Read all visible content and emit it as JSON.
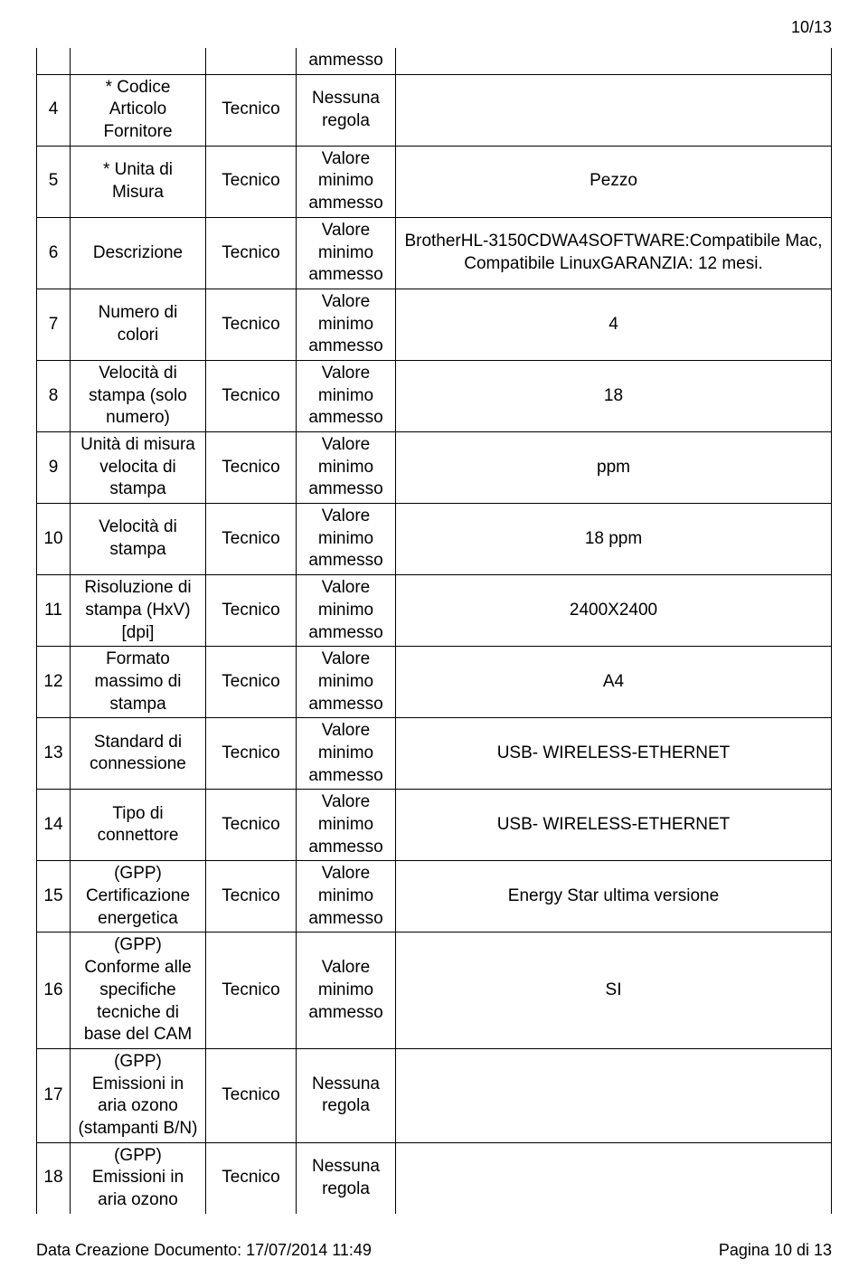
{
  "page_indicator": "10/13",
  "top_ammesso": "ammesso",
  "rows": [
    {
      "n": "4",
      "name": "* Codice Articolo Fornitore",
      "tecnico": "Tecnico",
      "regola": "Nessuna regola",
      "value": ""
    },
    {
      "n": "5",
      "name": "* Unita di Misura",
      "tecnico": "Tecnico",
      "regola": "Valore minimo ammesso",
      "value": "Pezzo"
    },
    {
      "n": "6",
      "name": "Descrizione",
      "tecnico": "Tecnico",
      "regola": "Valore minimo ammesso",
      "value": "BrotherHL-3150CDWA4SOFTWARE:Compatibile Mac, Compatibile LinuxGARANZIA: 12 mesi."
    },
    {
      "n": "7",
      "name": "Numero di colori",
      "tecnico": "Tecnico",
      "regola": "Valore minimo ammesso",
      "value": "4"
    },
    {
      "n": "8",
      "name": "Velocità di stampa (solo numero)",
      "tecnico": "Tecnico",
      "regola": "Valore minimo ammesso",
      "value": "18"
    },
    {
      "n": "9",
      "name": "Unità di misura velocita di stampa",
      "tecnico": "Tecnico",
      "regola": "Valore minimo ammesso",
      "value": "ppm"
    },
    {
      "n": "10",
      "name": "Velocità di stampa",
      "tecnico": "Tecnico",
      "regola": "Valore minimo ammesso",
      "value": "18 ppm"
    },
    {
      "n": "11",
      "name": "Risoluzione di stampa (HxV) [dpi]",
      "tecnico": "Tecnico",
      "regola": "Valore minimo ammesso",
      "value": "2400X2400"
    },
    {
      "n": "12",
      "name": "Formato massimo di stampa",
      "tecnico": "Tecnico",
      "regola": "Valore minimo ammesso",
      "value": "A4"
    },
    {
      "n": "13",
      "name": "Standard di connessione",
      "tecnico": "Tecnico",
      "regola": "Valore minimo ammesso",
      "value": "USB- WIRELESS-ETHERNET"
    },
    {
      "n": "14",
      "name": "Tipo di connettore",
      "tecnico": "Tecnico",
      "regola": "Valore minimo ammesso",
      "value": "USB- WIRELESS-ETHERNET"
    },
    {
      "n": "15",
      "name": "(GPP) Certificazione energetica",
      "tecnico": "Tecnico",
      "regola": "Valore minimo ammesso",
      "value": "Energy Star ultima versione"
    },
    {
      "n": "16",
      "name": "(GPP) Conforme alle specifiche tecniche di base del CAM",
      "tecnico": "Tecnico",
      "regola": "Valore minimo ammesso",
      "value": "SI"
    },
    {
      "n": "17",
      "name": "(GPP) Emissioni in aria ozono (stampanti B/N)",
      "tecnico": "Tecnico",
      "regola": "Nessuna regola",
      "value": ""
    },
    {
      "n": "18",
      "name": "(GPP) Emissioni in aria ozono",
      "tecnico": "Tecnico",
      "regola": "Nessuna regola",
      "value": ""
    }
  ],
  "footer_left": "Data Creazione Documento: 17/07/2014 11:49",
  "footer_right": "Pagina 10 di 13"
}
